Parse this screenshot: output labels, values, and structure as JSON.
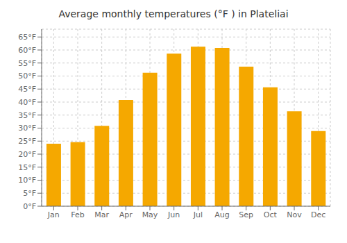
{
  "chart_data": {
    "type": "bar",
    "title": "Average monthly temperatures (°F ) in Plateliai",
    "categories": [
      "Jan",
      "Feb",
      "Mar",
      "Apr",
      "May",
      "Jun",
      "Jul",
      "Aug",
      "Sep",
      "Oct",
      "Nov",
      "Dec"
    ],
    "values": [
      24.0,
      24.6,
      30.9,
      40.8,
      51.3,
      58.6,
      61.3,
      60.8,
      53.6,
      45.7,
      36.5,
      28.9
    ],
    "color": "#F5A800",
    "ylim": [
      0,
      68
    ],
    "yticks": [
      {
        "value": 0,
        "label": "0°F"
      },
      {
        "value": 5,
        "label": "5°F"
      },
      {
        "value": 10,
        "label": "10°F"
      },
      {
        "value": 15,
        "label": "15°F"
      },
      {
        "value": 20,
        "label": "20°F"
      },
      {
        "value": 25,
        "label": "25°F"
      },
      {
        "value": 30,
        "label": "30°F"
      },
      {
        "value": 35,
        "label": "35°F"
      },
      {
        "value": 40,
        "label": "40°F"
      },
      {
        "value": 45,
        "label": "45°F"
      },
      {
        "value": 50,
        "label": "50°F"
      },
      {
        "value": 55,
        "label": "55°F"
      },
      {
        "value": 60,
        "label": "60°F"
      },
      {
        "value": 65,
        "label": "65°F"
      }
    ],
    "grid": true
  }
}
